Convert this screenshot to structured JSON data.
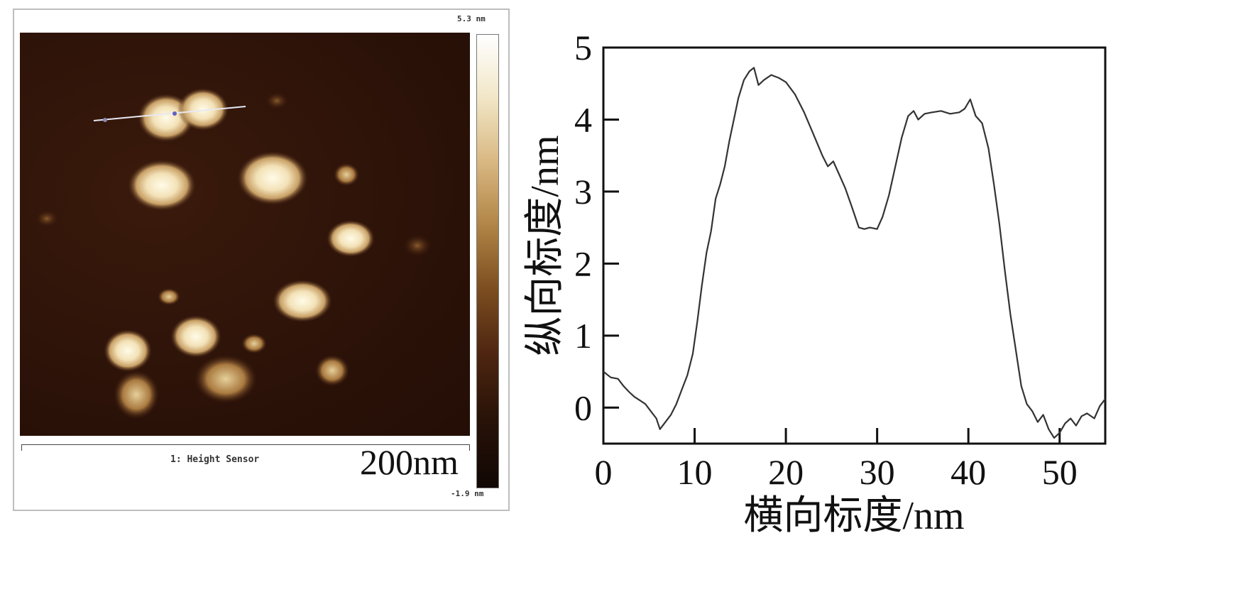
{
  "afm": {
    "colorbar_max": "5.3 nm",
    "colorbar_min": "-1.9 nm",
    "channel_label": "1: Height Sensor",
    "scale_bar_label": "200nm"
  },
  "chart_data": {
    "type": "line",
    "xlabel": "横向标度/nm",
    "ylabel": "纵向标度/nm",
    "xlim": [
      0,
      55
    ],
    "ylim": [
      -0.5,
      5
    ],
    "x_ticks": [
      0,
      10,
      20,
      30,
      40,
      50
    ],
    "y_ticks": [
      0,
      1,
      2,
      3,
      4,
      5
    ],
    "grid": false,
    "series": [
      {
        "name": "",
        "color": "#333333",
        "points": [
          [
            0,
            0.5
          ],
          [
            0.8,
            0.42
          ],
          [
            1.6,
            0.4
          ],
          [
            2.2,
            0.3
          ],
          [
            2.8,
            0.22
          ],
          [
            3.4,
            0.15
          ],
          [
            4.0,
            0.1
          ],
          [
            4.6,
            0.05
          ],
          [
            5.2,
            -0.05
          ],
          [
            5.8,
            -0.15
          ],
          [
            6.2,
            -0.3
          ],
          [
            6.8,
            -0.2
          ],
          [
            7.4,
            -0.1
          ],
          [
            8.0,
            0.05
          ],
          [
            8.6,
            0.25
          ],
          [
            9.2,
            0.45
          ],
          [
            9.8,
            0.75
          ],
          [
            10.3,
            1.2
          ],
          [
            10.8,
            1.7
          ],
          [
            11.3,
            2.15
          ],
          [
            11.8,
            2.45
          ],
          [
            12.3,
            2.9
          ],
          [
            12.8,
            3.1
          ],
          [
            13.3,
            3.35
          ],
          [
            13.8,
            3.7
          ],
          [
            14.3,
            4.0
          ],
          [
            14.8,
            4.3
          ],
          [
            15.4,
            4.55
          ],
          [
            16.0,
            4.67
          ],
          [
            16.5,
            4.72
          ],
          [
            17.0,
            4.48
          ],
          [
            17.6,
            4.55
          ],
          [
            18.4,
            4.62
          ],
          [
            19.2,
            4.58
          ],
          [
            20.0,
            4.52
          ],
          [
            21.0,
            4.35
          ],
          [
            22.0,
            4.1
          ],
          [
            23.0,
            3.8
          ],
          [
            24.0,
            3.5
          ],
          [
            24.6,
            3.35
          ],
          [
            25.2,
            3.42
          ],
          [
            25.8,
            3.25
          ],
          [
            26.5,
            3.05
          ],
          [
            27.2,
            2.8
          ],
          [
            28.0,
            2.5
          ],
          [
            28.6,
            2.48
          ],
          [
            29.2,
            2.5
          ],
          [
            30.0,
            2.48
          ],
          [
            30.6,
            2.65
          ],
          [
            31.3,
            2.95
          ],
          [
            32.0,
            3.35
          ],
          [
            32.7,
            3.75
          ],
          [
            33.4,
            4.05
          ],
          [
            34.0,
            4.12
          ],
          [
            34.5,
            4.0
          ],
          [
            35.2,
            4.08
          ],
          [
            36.0,
            4.1
          ],
          [
            37.0,
            4.12
          ],
          [
            38.0,
            4.08
          ],
          [
            39.0,
            4.1
          ],
          [
            39.6,
            4.15
          ],
          [
            40.2,
            4.28
          ],
          [
            40.8,
            4.05
          ],
          [
            41.5,
            3.95
          ],
          [
            42.2,
            3.6
          ],
          [
            42.8,
            3.1
          ],
          [
            43.4,
            2.55
          ],
          [
            44.0,
            1.9
          ],
          [
            44.6,
            1.3
          ],
          [
            45.2,
            0.8
          ],
          [
            45.8,
            0.3
          ],
          [
            46.4,
            0.05
          ],
          [
            47.0,
            -0.05
          ],
          [
            47.6,
            -0.2
          ],
          [
            48.2,
            -0.1
          ],
          [
            48.8,
            -0.3
          ],
          [
            49.4,
            -0.42
          ],
          [
            50.0,
            -0.35
          ],
          [
            50.6,
            -0.22
          ],
          [
            51.2,
            -0.15
          ],
          [
            51.8,
            -0.25
          ],
          [
            52.4,
            -0.12
          ],
          [
            53.0,
            -0.08
          ],
          [
            53.8,
            -0.15
          ],
          [
            54.4,
            0.02
          ],
          [
            55.0,
            0.12
          ]
        ]
      }
    ]
  }
}
